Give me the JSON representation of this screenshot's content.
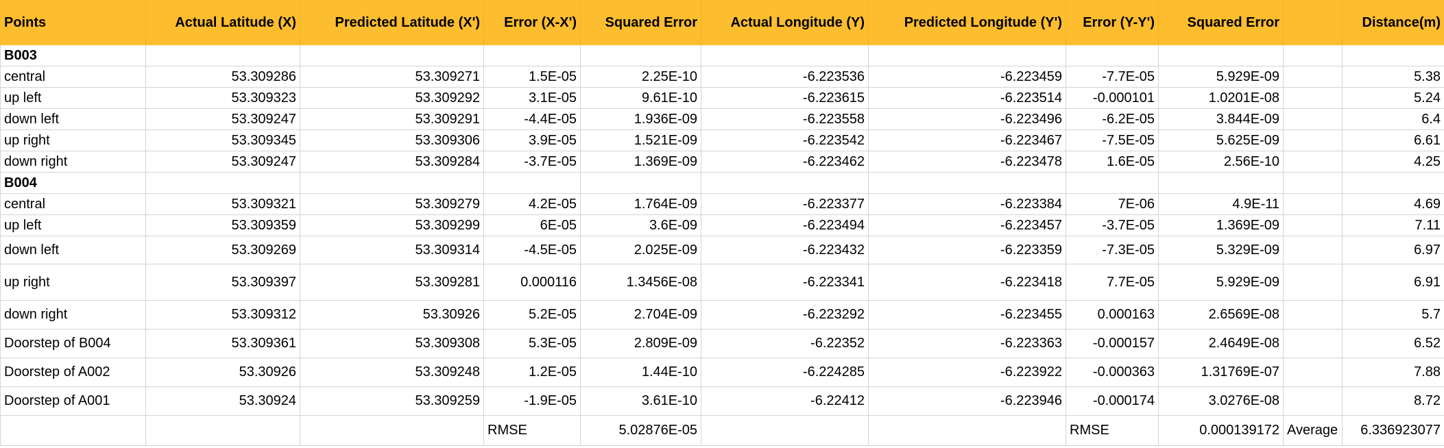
{
  "header": [
    "Points",
    "Actual Latitude (X)",
    "Predicted Latitude (X')",
    "Error (X-X')",
    "Squared Error",
    "Actual Longitude (Y)",
    "Predicted Longitude (Y')",
    "Error (Y-Y')",
    "Squared Error",
    "",
    "Distance(m)"
  ],
  "groups": {
    "g1": "B003",
    "g2": "B004"
  },
  "rows": {
    "r1": [
      "central",
      "53.309286",
      "53.309271",
      "1.5E-05",
      "2.25E-10",
      "-6.223536",
      "-6.223459",
      "-7.7E-05",
      "5.929E-09",
      "",
      "5.38"
    ],
    "r2": [
      "up left",
      "53.309323",
      "53.309292",
      "3.1E-05",
      "9.61E-10",
      "-6.223615",
      "-6.223514",
      "-0.000101",
      "1.0201E-08",
      "",
      "5.24"
    ],
    "r3": [
      "down left",
      "53.309247",
      "53.309291",
      "-4.4E-05",
      "1.936E-09",
      "-6.223558",
      "-6.223496",
      "-6.2E-05",
      "3.844E-09",
      "",
      "6.4"
    ],
    "r4": [
      "up right",
      "53.309345",
      "53.309306",
      "3.9E-05",
      "1.521E-09",
      "-6.223542",
      "-6.223467",
      "-7.5E-05",
      "5.625E-09",
      "",
      "6.61"
    ],
    "r5": [
      "down right",
      "53.309247",
      "53.309284",
      "-3.7E-05",
      "1.369E-09",
      "-6.223462",
      "-6.223478",
      "1.6E-05",
      "2.56E-10",
      "",
      "4.25"
    ],
    "r6": [
      "central",
      "53.309321",
      "53.309279",
      "4.2E-05",
      "1.764E-09",
      "-6.223377",
      "-6.223384",
      "7E-06",
      "4.9E-11",
      "",
      "4.69"
    ],
    "r7": [
      "up left",
      "53.309359",
      "53.309299",
      "6E-05",
      "3.6E-09",
      "-6.223494",
      "-6.223457",
      "-3.7E-05",
      "1.369E-09",
      "",
      "7.11"
    ],
    "r8": [
      "down left",
      "53.309269",
      "53.309314",
      "-4.5E-05",
      "2.025E-09",
      "-6.223432",
      "-6.223359",
      "-7.3E-05",
      "5.329E-09",
      "",
      "6.97"
    ],
    "r9": [
      "up right",
      "53.309397",
      "53.309281",
      "0.000116",
      "1.3456E-08",
      "-6.223341",
      "-6.223418",
      "7.7E-05",
      "5.929E-09",
      "",
      "6.91"
    ],
    "r10": [
      "down right",
      "53.309312",
      "53.30926",
      "5.2E-05",
      "2.704E-09",
      "-6.223292",
      "-6.223455",
      "0.000163",
      "2.6569E-08",
      "",
      "5.7"
    ],
    "r11": [
      "Doorstep of B004",
      "53.309361",
      "53.309308",
      "5.3E-05",
      "2.809E-09",
      "-6.22352",
      "-6.223363",
      "-0.000157",
      "2.4649E-08",
      "",
      "6.52"
    ],
    "r12": [
      "Doorstep of A002",
      "53.30926",
      "53.309248",
      "1.2E-05",
      "1.44E-10",
      "-6.224285",
      "-6.223922",
      "-0.000363",
      "1.31769E-07",
      "",
      "7.88"
    ],
    "r13": [
      "Doorstep of A001",
      "53.30924",
      "53.309259",
      "-1.9E-05",
      "3.61E-10",
      "-6.22412",
      "-6.223946",
      "-0.000174",
      "3.0276E-08",
      "",
      "8.72"
    ]
  },
  "summary": {
    "rmse_x_label": "RMSE",
    "rmse_x_value": "5.02876E-05",
    "rmse_y_label": "RMSE",
    "rmse_y_value": "0.000139172",
    "average_label": "Average",
    "average_value": "6.336923077"
  }
}
